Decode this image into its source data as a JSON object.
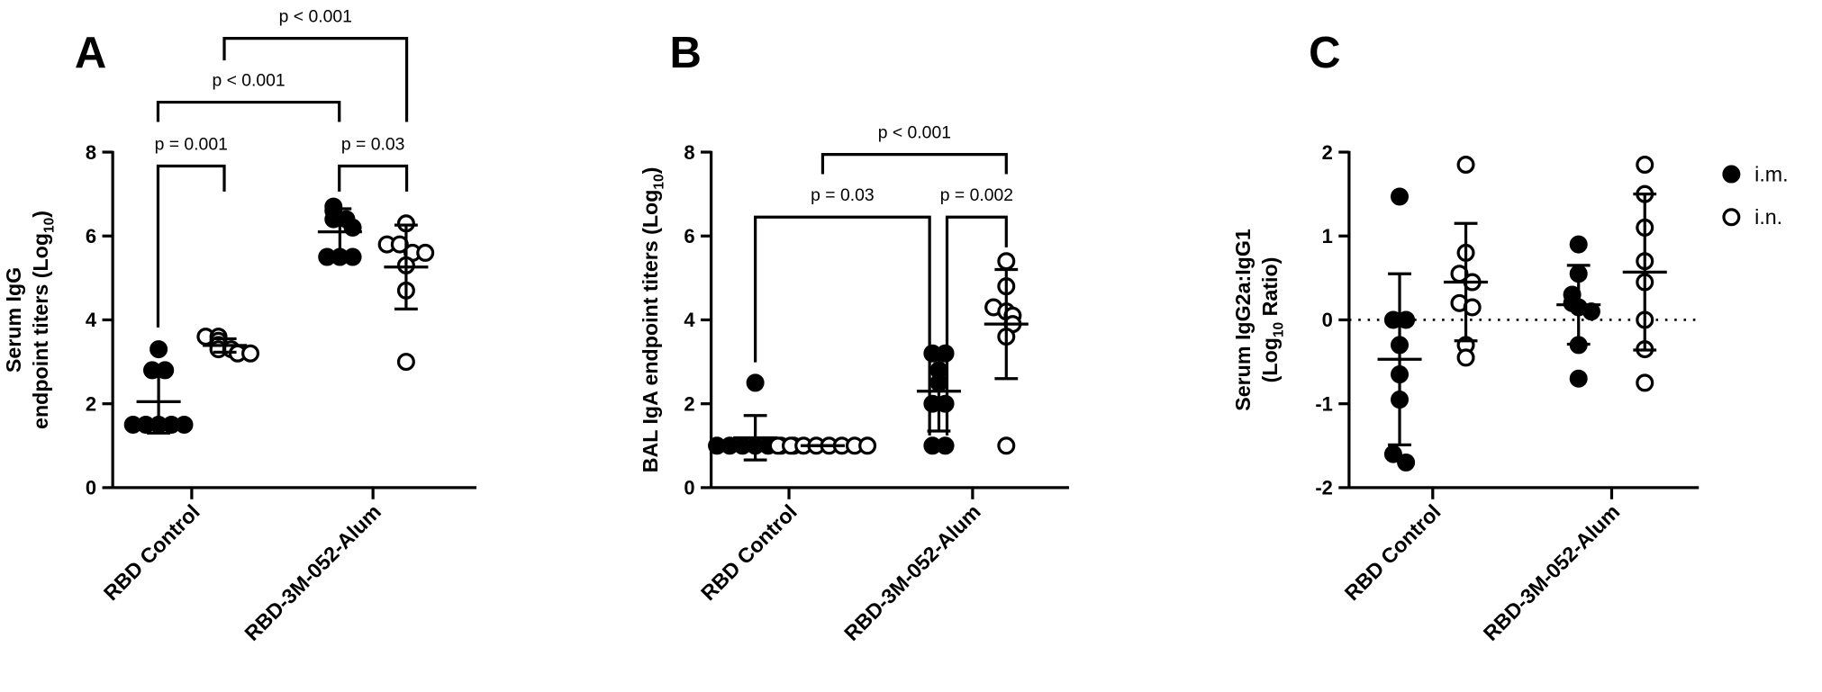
{
  "chart_data": [
    {
      "type": "scatter",
      "panel": "A",
      "ylabel": [
        [
          "Serum IgG"
        ],
        [
          "endpoint titers (Log",
          "10",
          ")"
        ]
      ],
      "categories": [
        "RBD Control",
        "RBD-3M-052-Alum"
      ],
      "ylim": [
        0,
        8
      ],
      "yticks": [
        0,
        2,
        4,
        6,
        8
      ],
      "series": [
        {
          "name": "i.m.",
          "color": "#000000",
          "filled": true,
          "values": [
            [
              3.3,
              2.8,
              2.8,
              1.5,
              1.5,
              1.5,
              1.5,
              1.5
            ],
            [
              6.7,
              6.6,
              6.4,
              6.4,
              6.2,
              5.5,
              5.5,
              5.5
            ]
          ],
          "mean": [
            2.05,
            6.1
          ],
          "sd": [
            0.75,
            0.55
          ]
        },
        {
          "name": "i.n.",
          "color": "#000000",
          "filled": false,
          "values": [
            [
              3.6,
              3.6,
              3.5,
              3.4,
              3.3,
              3.3,
              3.2,
              3.2
            ],
            [
              6.3,
              5.8,
              5.8,
              5.6,
              5.6,
              5.3,
              4.7,
              3.0
            ]
          ],
          "mean": [
            3.39,
            5.26
          ],
          "sd": [
            0.16,
            1.0
          ]
        }
      ],
      "annotations": [
        "p = 0.001",
        "p = 0.03",
        "p < 0.001",
        "p < 0.001"
      ]
    },
    {
      "type": "scatter",
      "panel": "B",
      "ylabel": [
        [
          "BAL IgA endpoint titers (Log",
          "10",
          ")"
        ]
      ],
      "categories": [
        "RBD Control",
        "RBD-3M-052-Alum"
      ],
      "ylim": [
        0,
        8
      ],
      "yticks": [
        0,
        2,
        4,
        6,
        8
      ],
      "series": [
        {
          "name": "i.m.",
          "color": "#000000",
          "filled": true,
          "values": [
            [
              2.5,
              1,
              1,
              1,
              1,
              1,
              1,
              1
            ],
            [
              3.2,
              3.2,
              2.8,
              2.5,
              2.0,
              2.0,
              1.0,
              1.0
            ]
          ],
          "mean": [
            1.19,
            2.3
          ],
          "sd": [
            0.53,
            0.95
          ]
        },
        {
          "name": "i.n.",
          "color": "#000000",
          "filled": false,
          "values": [
            [
              1,
              1,
              1,
              1,
              1,
              1,
              1,
              1
            ],
            [
              5.4,
              4.8,
              4.3,
              4.2,
              4.1,
              3.9,
              3.6,
              1.0
            ]
          ],
          "mean": [
            1,
            3.9
          ],
          "sd": [
            0,
            1.3
          ]
        }
      ],
      "annotations": [
        "p = 0.03",
        "p = 0.002",
        "p < 0.001"
      ]
    },
    {
      "type": "scatter",
      "panel": "C",
      "ylabel": [
        [
          "Serum IgG2a:IgG1"
        ],
        [
          "(Log",
          "10",
          " Ratio)"
        ]
      ],
      "categories": [
        "RBD Control",
        "RBD-3M-052-Alum"
      ],
      "ylim": [
        -2,
        2
      ],
      "yticks": [
        -2,
        -1,
        0,
        1,
        2
      ],
      "reference_line": 0,
      "legend": "top-right",
      "series": [
        {
          "name": "i.m.",
          "color": "#000000",
          "filled": true,
          "values": [
            [
              1.47,
              0,
              0,
              -0.3,
              -0.65,
              -0.95,
              -1.6,
              -1.7
            ],
            [
              0.9,
              0.55,
              0.3,
              0.2,
              0.15,
              0.1,
              -0.3,
              -0.7
            ]
          ],
          "mean": [
            -0.47,
            0.18
          ],
          "sd": [
            1.02,
            0.47
          ]
        },
        {
          "name": "i.n.",
          "color": "#000000",
          "filled": false,
          "values": [
            [
              1.85,
              0.8,
              0.55,
              0.45,
              0.2,
              0.15,
              -0.3,
              -0.45
            ],
            [
              1.85,
              1.5,
              1.1,
              0.7,
              0.45,
              0.0,
              -0.35,
              -0.75
            ]
          ],
          "mean": [
            0.45,
            0.57
          ],
          "sd": [
            0.7,
            0.93
          ]
        }
      ]
    }
  ]
}
